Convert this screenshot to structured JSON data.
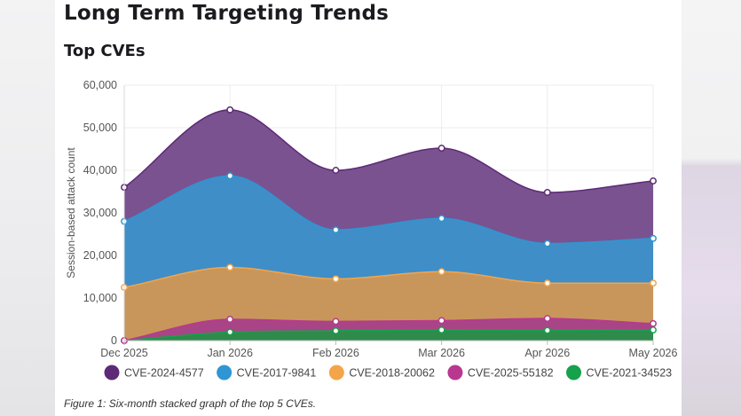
{
  "page": {
    "title": "Long Term Targeting Trends",
    "subtitle": "Top CVEs",
    "caption": "Figure 1: Six-month stacked graph of the top 5 CVEs."
  },
  "chart_data": {
    "type": "area",
    "stacked": true,
    "x": [
      "Dec 2025",
      "Jan 2026",
      "Feb 2026",
      "Mar 2026",
      "Apr 2026",
      "May 2026"
    ],
    "ylabel": "Session-based attack count",
    "xlabel": "",
    "ylim": [
      0,
      60000
    ],
    "yticks": [
      "0",
      "10,000",
      "20,000",
      "30,000",
      "40,000",
      "50,000",
      "60,000"
    ],
    "grid": true,
    "legend": "bottom",
    "series": [
      {
        "name": "CVE-2024-4577",
        "color": "#5d2a76",
        "fill": "#7a5290",
        "values": [
          8000,
          15500,
          14000,
          16500,
          12000,
          13500
        ]
      },
      {
        "name": "CVE-2017-9841",
        "color": "#2f95d3",
        "fill": "#3f8ec7",
        "values": [
          15500,
          21500,
          11500,
          12500,
          9300,
          10500
        ]
      },
      {
        "name": "CVE-2018-20062",
        "color": "#f3a54a",
        "fill": "#c8965b",
        "values": [
          12500,
          12200,
          10000,
          11500,
          8300,
          9500
        ]
      },
      {
        "name": "CVE-2025-55182",
        "color": "#b8388f",
        "fill": "#a94586",
        "values": [
          0,
          3000,
          2200,
          2200,
          2800,
          1500
        ]
      },
      {
        "name": "CVE-2021-34523",
        "color": "#16a14c",
        "fill": "#2e8b4b",
        "values": [
          0,
          2000,
          2300,
          2500,
          2400,
          2500
        ]
      }
    ]
  }
}
